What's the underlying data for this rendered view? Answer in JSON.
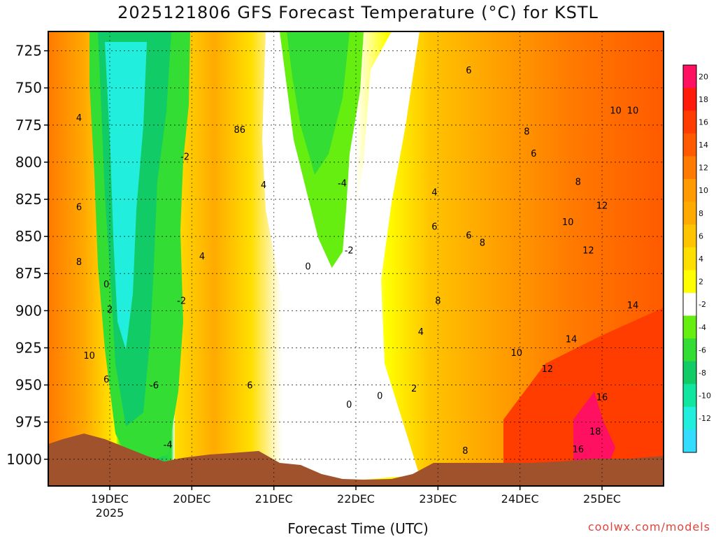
{
  "chart_data": {
    "type": "heatmap",
    "title": "2025121806 GFS Forecast Temperature (°C) for KSTL",
    "xlabel": "Forecast Time (UTC)",
    "ylabel": "",
    "credit": "coolwx.com/models",
    "y_ticks": [
      725,
      750,
      775,
      800,
      825,
      850,
      875,
      900,
      925,
      950,
      975,
      1000
    ],
    "y_range": [
      712,
      1018
    ],
    "x_range": [
      "2025-12-18T06",
      "2025-12-25T18"
    ],
    "x_ticks": [
      {
        "label": "19DEC",
        "sublabel": "2025",
        "time": "2025-12-19T00"
      },
      {
        "label": "20DEC",
        "sublabel": "",
        "time": "2025-12-20T00"
      },
      {
        "label": "21DEC",
        "sublabel": "",
        "time": "2025-12-21T00"
      },
      {
        "label": "22DEC",
        "sublabel": "",
        "time": "2025-12-22T00"
      },
      {
        "label": "23DEC",
        "sublabel": "",
        "time": "2025-12-23T00"
      },
      {
        "label": "24DEC",
        "sublabel": "",
        "time": "2025-12-24T00"
      },
      {
        "label": "25DEC",
        "sublabel": "",
        "time": "2025-12-25T00"
      }
    ],
    "colorbar": {
      "levels": [
        {
          "label": "20",
          "color": "#ff1060"
        },
        {
          "label": "18",
          "color": "#ff1a0a"
        },
        {
          "label": "16",
          "color": "#ff3d00"
        },
        {
          "label": "14",
          "color": "#ff5a00"
        },
        {
          "label": "12",
          "color": "#ff7a00"
        },
        {
          "label": "10",
          "color": "#ff9a00"
        },
        {
          "label": "8",
          "color": "#ffaa00"
        },
        {
          "label": "6",
          "color": "#ffc400"
        },
        {
          "label": "4",
          "color": "#ffdf00"
        },
        {
          "label": "2",
          "color": "#ffff00"
        },
        {
          "label": "-2",
          "color": "#ffffff"
        },
        {
          "label": "-4",
          "color": "#66ee11"
        },
        {
          "label": "-6",
          "color": "#33dd33"
        },
        {
          "label": "-8",
          "color": "#11cc66"
        },
        {
          "label": "-10",
          "color": "#11e6a0"
        },
        {
          "label": "-12",
          "color": "#22eedd"
        },
        {
          "label": "",
          "color": "#33ddff"
        }
      ]
    },
    "contour_labels": [
      {
        "text": "4",
        "time": "2025-12-18T15",
        "p": 770
      },
      {
        "text": "6",
        "time": "2025-12-18T15",
        "p": 830
      },
      {
        "text": "8",
        "time": "2025-12-18T15",
        "p": 867
      },
      {
        "text": "0",
        "time": "2025-12-18T23",
        "p": 882
      },
      {
        "text": "2",
        "time": "2025-12-19T00",
        "p": 899
      },
      {
        "text": "10",
        "time": "2025-12-18T18",
        "p": 930
      },
      {
        "text": "6",
        "time": "2025-12-18T23",
        "p": 946
      },
      {
        "text": "-2",
        "time": "2025-12-19T22",
        "p": 796
      },
      {
        "text": "-2",
        "time": "2025-12-19T21",
        "p": 893
      },
      {
        "text": "-6",
        "time": "2025-12-19T13",
        "p": 950
      },
      {
        "text": "-4",
        "time": "2025-12-19T17",
        "p": 990
      },
      {
        "text": "86",
        "time": "2025-12-20T14",
        "p": 778
      },
      {
        "text": "4",
        "time": "2025-12-20T21",
        "p": 815
      },
      {
        "text": "4",
        "time": "2025-12-20T03",
        "p": 863
      },
      {
        "text": "6",
        "time": "2025-12-20T17",
        "p": 950
      },
      {
        "text": "-4",
        "time": "2025-12-21T20",
        "p": 814
      },
      {
        "text": "-2",
        "time": "2025-12-21T22",
        "p": 859
      },
      {
        "text": "0",
        "time": "2025-12-21T10",
        "p": 870
      },
      {
        "text": "0",
        "time": "2025-12-21T22",
        "p": 963
      },
      {
        "text": "0",
        "time": "2025-12-22T07",
        "p": 957
      },
      {
        "text": "2",
        "time": "2025-12-22T17",
        "p": 952
      },
      {
        "text": "4",
        "time": "2025-12-22T19",
        "p": 914
      },
      {
        "text": "4",
        "time": "2025-12-22T23",
        "p": 820
      },
      {
        "text": "6",
        "time": "2025-12-22T23",
        "p": 843
      },
      {
        "text": "8",
        "time": "2025-12-23T00",
        "p": 893
      },
      {
        "text": "6",
        "time": "2025-12-23T09",
        "p": 849
      },
      {
        "text": "8",
        "time": "2025-12-23T13",
        "p": 854
      },
      {
        "text": "6",
        "time": "2025-12-23T09",
        "p": 738
      },
      {
        "text": "8",
        "time": "2025-12-23T08",
        "p": 994
      },
      {
        "text": "10",
        "time": "2025-12-23T23",
        "p": 928
      },
      {
        "text": "8",
        "time": "2025-12-24T02",
        "p": 779
      },
      {
        "text": "6",
        "time": "2025-12-24T04",
        "p": 794
      },
      {
        "text": "8",
        "time": "2025-12-24T17",
        "p": 813
      },
      {
        "text": "10",
        "time": "2025-12-24T14",
        "p": 840
      },
      {
        "text": "12",
        "time": "2025-12-25T00",
        "p": 829
      },
      {
        "text": "12",
        "time": "2025-12-24T20",
        "p": 859
      },
      {
        "text": "10",
        "time": "2025-12-25T04",
        "p": 765
      },
      {
        "text": "10",
        "time": "2025-12-25T09",
        "p": 765
      },
      {
        "text": "14",
        "time": "2025-12-24T15",
        "p": 919
      },
      {
        "text": "14",
        "time": "2025-12-25T09",
        "p": 896
      },
      {
        "text": "12",
        "time": "2025-12-24T08",
        "p": 939
      },
      {
        "text": "16",
        "time": "2025-12-25T00",
        "p": 958
      },
      {
        "text": "18",
        "time": "2025-12-24T22",
        "p": 981
      },
      {
        "text": "16",
        "time": "2025-12-24T17",
        "p": 993
      }
    ]
  }
}
